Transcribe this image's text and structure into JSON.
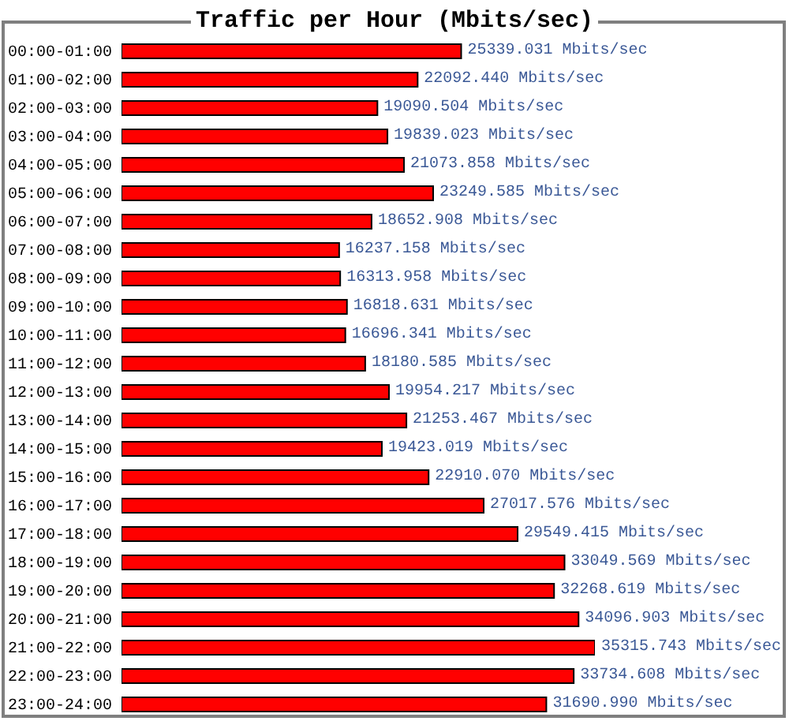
{
  "chart_data": {
    "type": "bar",
    "orientation": "horizontal",
    "title": "Traffic per Hour (Mbits/sec)",
    "categories": [
      "00:00-01:00",
      "01:00-02:00",
      "02:00-03:00",
      "03:00-04:00",
      "04:00-05:00",
      "05:00-06:00",
      "06:00-07:00",
      "07:00-08:00",
      "08:00-09:00",
      "09:00-10:00",
      "10:00-11:00",
      "11:00-12:00",
      "12:00-13:00",
      "13:00-14:00",
      "14:00-15:00",
      "15:00-16:00",
      "16:00-17:00",
      "17:00-18:00",
      "18:00-19:00",
      "19:00-20:00",
      "20:00-21:00",
      "21:00-22:00",
      "22:00-23:00",
      "23:00-24:00"
    ],
    "series": [
      {
        "color": "#ff0000",
        "values": [
          25339.031,
          22092.44,
          19090.504,
          19839.023,
          21073.858,
          23249.585,
          18652.908,
          16237.158,
          16313.958,
          16818.631,
          16696.341,
          18180.585,
          19954.217,
          21253.467,
          19423.019,
          22910.07,
          27017.576,
          29549.415,
          33049.569,
          32268.619,
          34096.903,
          35315.743,
          33734.608,
          31690.99
        ],
        "value_labels": [
          "25339.031 Mbits/sec",
          "22092.440 Mbits/sec",
          "19090.504 Mbits/sec",
          "19839.023 Mbits/sec",
          "21073.858 Mbits/sec",
          "23249.585 Mbits/sec",
          "18652.908 Mbits/sec",
          "16237.158 Mbits/sec",
          "16313.958 Mbits/sec",
          "16818.631 Mbits/sec",
          "16696.341 Mbits/sec",
          "18180.585 Mbits/sec",
          "19954.217 Mbits/sec",
          "21253.467 Mbits/sec",
          "19423.019 Mbits/sec",
          "22910.070 Mbits/sec",
          "27017.576 Mbits/sec",
          "29549.415 Mbits/sec",
          "33049.569 Mbits/sec",
          "32268.619 Mbits/sec",
          "34096.903 Mbits/sec",
          "35315.743 Mbits/sec",
          "33734.608 Mbits/sec",
          "31690.990 Mbits/sec"
        ]
      }
    ],
    "tick_labels": "y"
  }
}
